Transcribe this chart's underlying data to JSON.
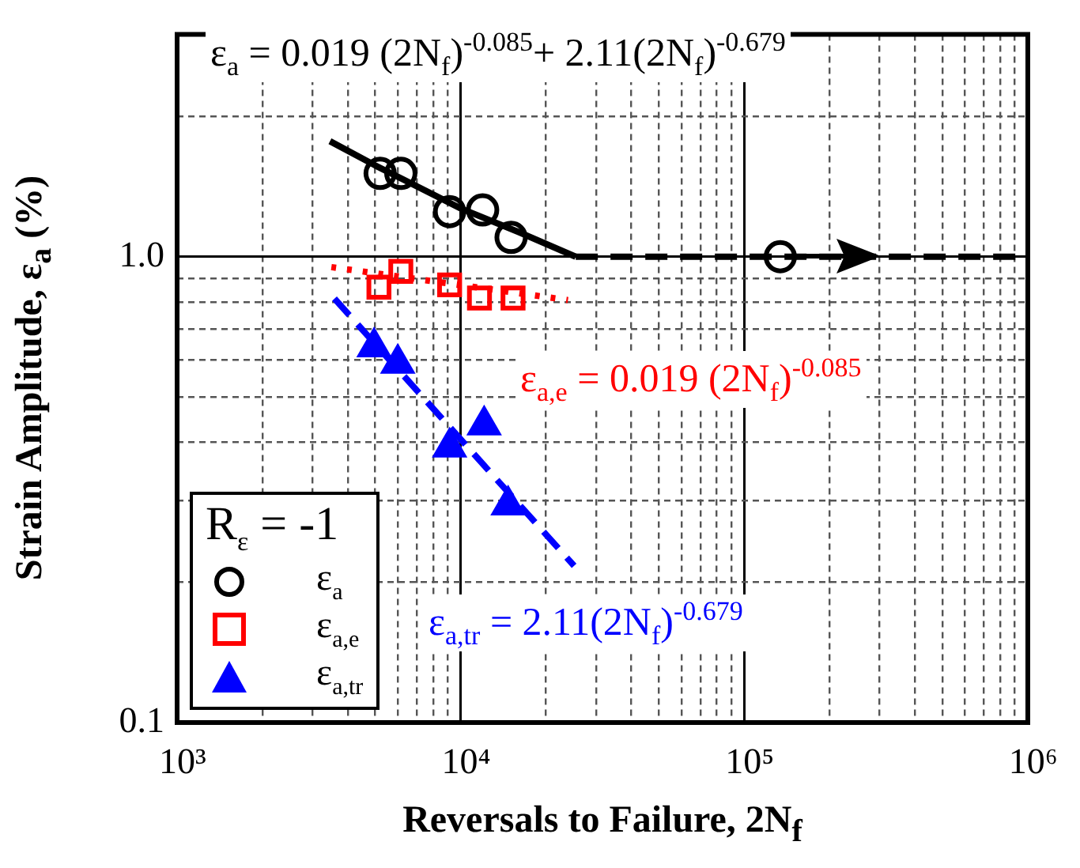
{
  "chart_data": {
    "type": "scatter",
    "xlabel": "Reversals to Failure, 2N$_{f}$",
    "ylabel": "Strain Amplitude, ε$_{a}$ (%)",
    "legend_title": "R$_{ε}$ = -1",
    "log": "xy",
    "grid": true,
    "legend": "bottom left",
    "xlim": [
      1000,
      1000000
    ],
    "xticks": [
      {
        "value": 1000,
        "label": "10³"
      },
      {
        "value": 2000,
        "label": null
      },
      {
        "value": 3000,
        "label": null
      },
      {
        "value": 4000,
        "label": null
      },
      {
        "value": 5000,
        "label": null
      },
      {
        "value": 6000,
        "label": null
      },
      {
        "value": 7000,
        "label": null
      },
      {
        "value": 8000,
        "label": null
      },
      {
        "value": 9000,
        "label": null
      },
      {
        "value": 10000,
        "label": "10⁴"
      },
      {
        "value": 20000,
        "label": null
      },
      {
        "value": 30000,
        "label": null
      },
      {
        "value": 40000,
        "label": null
      },
      {
        "value": 50000,
        "label": null
      },
      {
        "value": 60000,
        "label": null
      },
      {
        "value": 70000,
        "label": null
      },
      {
        "value": 80000,
        "label": null
      },
      {
        "value": 90000,
        "label": null
      },
      {
        "value": 100000,
        "label": "10⁵"
      },
      {
        "value": 200000,
        "label": null
      },
      {
        "value": 300000,
        "label": null
      },
      {
        "value": 400000,
        "label": null
      },
      {
        "value": 500000,
        "label": null
      },
      {
        "value": 600000,
        "label": null
      },
      {
        "value": 700000,
        "label": null
      },
      {
        "value": 800000,
        "label": null
      },
      {
        "value": 900000,
        "label": null
      },
      {
        "value": 1000000,
        "label": "10⁶"
      }
    ],
    "ylim": [
      0.1,
      3
    ],
    "yticks": [
      {
        "value": 0.1,
        "label": "0.1"
      },
      {
        "value": 0.2,
        "label": null
      },
      {
        "value": 0.3,
        "label": null
      },
      {
        "value": 0.4,
        "label": null
      },
      {
        "value": 0.5,
        "label": null
      },
      {
        "value": 0.6,
        "label": null
      },
      {
        "value": 0.7,
        "label": null
      },
      {
        "value": 0.8,
        "label": null
      },
      {
        "value": 0.9,
        "label": null
      },
      {
        "value": 1,
        "label": "1.0"
      },
      {
        "value": 2,
        "label": null
      },
      {
        "value": 3,
        "label": null
      }
    ],
    "series": [
      {
        "name": "ε$_{a}$",
        "type": "scatter",
        "marker": "circle",
        "color": "#000000",
        "x": [
          5200,
          6150,
          9140,
          11950,
          15060,
          134000
        ],
        "values": [
          1.51,
          1.51,
          1.25,
          1.26,
          1.1,
          1.0
        ]
      },
      {
        "name": "ε$_{a,e}$",
        "type": "scatter",
        "marker": "square",
        "color": "#ff0000",
        "x": [
          5150,
          6150,
          9140,
          11650,
          15300
        ],
        "values": [
          0.86,
          0.93,
          0.87,
          0.815,
          0.815
        ]
      },
      {
        "name": "ε$_{a,tr}$",
        "type": "scatter",
        "marker": "triangle",
        "color": "#0000ff",
        "x": [
          4950,
          6000,
          9140,
          12100,
          14700
        ],
        "values": [
          0.64,
          0.59,
          0.39,
          0.435,
          0.293
        ]
      },
      {
        "type": "line",
        "marker": "none",
        "line_style": "solid",
        "color": "#000000",
        "x": [
          3460,
          5000,
          10000,
          16000,
          25450
        ],
        "values": [
          1.77,
          1.57,
          1.27,
          1.13,
          1.0
        ]
      },
      {
        "type": "line",
        "marker": "none",
        "line_style": "dashed",
        "color": "#000000",
        "x": [
          25450,
          1000000
        ],
        "values": [
          1.0,
          1.0
        ]
      },
      {
        "type": "line",
        "marker": "none",
        "line_style": "dotted",
        "color": "#ff0000",
        "x": [
          3500,
          23900
        ],
        "values": [
          0.95,
          0.807
        ]
      },
      {
        "type": "line",
        "marker": "none",
        "line_style": "dashed",
        "color": "#0000ff",
        "x": [
          3590,
          25120
        ],
        "values": [
          0.813,
          0.217
        ]
      }
    ],
    "annotations": [
      "ε$_{a}$ = 0.019 (2N$_{f}$)$^{-0.085}$+ 2.11(2N$_{f}$)$^{-0.679}$",
      "ε$_{a,e}$ = 0.019 (2N$_{f}$)$^{-0.085}$",
      "ε$_{a,tr}$ = 2.11(2N$_{f}$)$^{-0.679}$"
    ]
  }
}
